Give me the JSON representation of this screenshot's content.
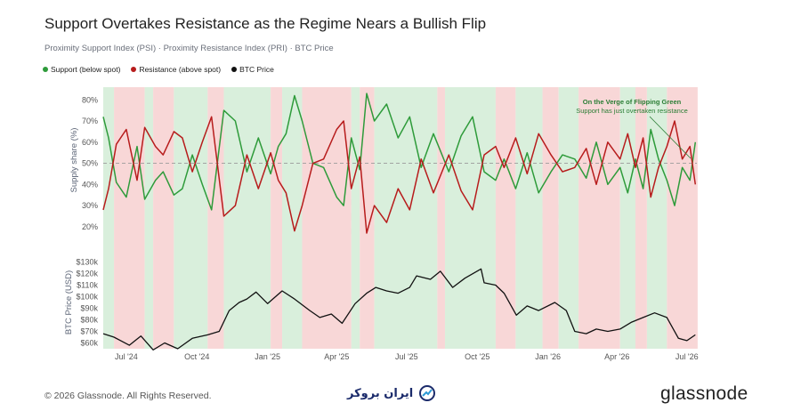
{
  "title": "Support Overtakes Resistance as the Regime Nears a Bullish Flip",
  "subtitle": "Proximity Support Index (PSI) · Proximity Resistance Index (PRI) · BTC Price",
  "legend": [
    {
      "label": "Support (below spot)",
      "color": "#2e9b3a"
    },
    {
      "label": "Resistance (above spot)",
      "color": "#b71c1c"
    },
    {
      "label": "BTC Price",
      "color": "#111111"
    }
  ],
  "watermark": "glassnode",
  "footer": {
    "copyright": "© 2026 Glassnode. All Rights Reserved.",
    "partner": "ایران بروکر",
    "brand": "glassnode"
  },
  "chart_data": [
    {
      "type": "line",
      "ylabel": "Supply share (%)",
      "yticks": [
        "20%",
        "30%",
        "40%",
        "50%",
        "60%",
        "70%",
        "80%"
      ],
      "ylim": [
        17,
        86
      ],
      "reference_line": 50,
      "xticks": [
        "Jul '24",
        "Oct '24",
        "Jan '25",
        "Apr '25",
        "Jul '25",
        "Oct '25",
        "Jan '26",
        "Apr '26",
        "Jul '26"
      ],
      "regime_colors": {
        "green": "#d9efdc",
        "red": "#f8d7d7"
      },
      "regimes": [
        {
          "from": "2024-06-01",
          "to": "2024-06-15",
          "regime": "green"
        },
        {
          "from": "2024-06-15",
          "to": "2024-07-25",
          "regime": "red"
        },
        {
          "from": "2024-07-25",
          "to": "2024-08-05",
          "regime": "green"
        },
        {
          "from": "2024-08-05",
          "to": "2024-09-01",
          "regime": "red"
        },
        {
          "from": "2024-09-01",
          "to": "2024-10-15",
          "regime": "green"
        },
        {
          "from": "2024-10-15",
          "to": "2024-11-05",
          "regime": "red"
        },
        {
          "from": "2024-11-05",
          "to": "2025-01-05",
          "regime": "green"
        },
        {
          "from": "2025-01-05",
          "to": "2025-01-20",
          "regime": "red"
        },
        {
          "from": "2025-01-20",
          "to": "2025-02-15",
          "regime": "green"
        },
        {
          "from": "2025-02-15",
          "to": "2025-04-20",
          "regime": "red"
        },
        {
          "from": "2025-04-20",
          "to": "2025-05-01",
          "regime": "green"
        },
        {
          "from": "2025-05-01",
          "to": "2025-05-20",
          "regime": "red"
        },
        {
          "from": "2025-05-20",
          "to": "2025-08-10",
          "regime": "green"
        },
        {
          "from": "2025-08-10",
          "to": "2025-08-20",
          "regime": "red"
        },
        {
          "from": "2025-08-20",
          "to": "2025-10-25",
          "regime": "green"
        },
        {
          "from": "2025-10-25",
          "to": "2025-11-20",
          "regime": "red"
        },
        {
          "from": "2025-11-20",
          "to": "2025-12-25",
          "regime": "green"
        },
        {
          "from": "2025-12-25",
          "to": "2026-01-15",
          "regime": "red"
        },
        {
          "from": "2026-01-15",
          "to": "2026-02-10",
          "regime": "green"
        },
        {
          "from": "2026-02-10",
          "to": "2026-04-05",
          "regime": "red"
        },
        {
          "from": "2026-04-05",
          "to": "2026-04-25",
          "regime": "green"
        },
        {
          "from": "2026-04-25",
          "to": "2026-05-10",
          "regime": "red"
        },
        {
          "from": "2026-05-10",
          "to": "2026-06-05",
          "regime": "green"
        },
        {
          "from": "2026-06-05",
          "to": "2026-07-15",
          "regime": "red"
        }
      ],
      "series": [
        {
          "name": "Support (below spot)",
          "color": "#2e9b3a",
          "x": [
            "2024-06-01",
            "2024-06-08",
            "2024-06-18",
            "2024-07-01",
            "2024-07-15",
            "2024-07-25",
            "2024-08-08",
            "2024-08-18",
            "2024-09-01",
            "2024-09-12",
            "2024-09-25",
            "2024-10-08",
            "2024-10-20",
            "2024-11-05",
            "2024-11-20",
            "2024-12-05",
            "2024-12-20",
            "2025-01-05",
            "2025-01-15",
            "2025-01-25",
            "2025-02-05",
            "2025-02-15",
            "2025-03-01",
            "2025-03-15",
            "2025-04-01",
            "2025-04-10",
            "2025-04-20",
            "2025-05-01",
            "2025-05-10",
            "2025-05-20",
            "2025-06-05",
            "2025-06-20",
            "2025-07-05",
            "2025-07-20",
            "2025-08-05",
            "2025-08-15",
            "2025-08-25",
            "2025-09-10",
            "2025-09-25",
            "2025-10-10",
            "2025-10-25",
            "2025-11-05",
            "2025-11-20",
            "2025-12-05",
            "2025-12-20",
            "2026-01-05",
            "2026-01-20",
            "2026-02-05",
            "2026-02-20",
            "2026-03-05",
            "2026-03-20",
            "2026-04-05",
            "2026-04-15",
            "2026-04-25",
            "2026-05-05",
            "2026-05-15",
            "2026-05-25",
            "2026-06-05",
            "2026-06-15",
            "2026-06-25",
            "2026-07-05",
            "2026-07-12"
          ],
          "y": [
            72,
            62,
            41,
            34,
            58,
            33,
            42,
            46,
            35,
            38,
            54,
            40,
            28,
            75,
            70,
            46,
            62,
            45,
            58,
            64,
            82,
            70,
            50,
            48,
            34,
            30,
            62,
            47,
            83,
            70,
            78,
            62,
            72,
            48,
            64,
            55,
            46,
            63,
            72,
            46,
            42,
            52,
            38,
            55,
            36,
            46,
            54,
            52,
            43,
            60,
            40,
            48,
            36,
            52,
            38,
            66,
            52,
            42,
            30,
            48,
            42,
            60
          ]
        },
        {
          "name": "Resistance (above spot)",
          "color": "#b71c1c",
          "x": [
            "2024-06-01",
            "2024-06-08",
            "2024-06-18",
            "2024-07-01",
            "2024-07-15",
            "2024-07-25",
            "2024-08-08",
            "2024-08-18",
            "2024-09-01",
            "2024-09-12",
            "2024-09-25",
            "2024-10-08",
            "2024-10-20",
            "2024-11-05",
            "2024-11-20",
            "2024-12-05",
            "2024-12-20",
            "2025-01-05",
            "2025-01-15",
            "2025-01-25",
            "2025-02-05",
            "2025-02-15",
            "2025-03-01",
            "2025-03-15",
            "2025-04-01",
            "2025-04-10",
            "2025-04-20",
            "2025-05-01",
            "2025-05-10",
            "2025-05-20",
            "2025-06-05",
            "2025-06-20",
            "2025-07-05",
            "2025-07-20",
            "2025-08-05",
            "2025-08-15",
            "2025-08-25",
            "2025-09-10",
            "2025-09-25",
            "2025-10-10",
            "2025-10-25",
            "2025-11-05",
            "2025-11-20",
            "2025-12-05",
            "2025-12-20",
            "2026-01-05",
            "2026-01-20",
            "2026-02-05",
            "2026-02-20",
            "2026-03-05",
            "2026-03-20",
            "2026-04-05",
            "2026-04-15",
            "2026-04-25",
            "2026-05-05",
            "2026-05-15",
            "2026-05-25",
            "2026-06-05",
            "2026-06-15",
            "2026-06-25",
            "2026-07-05",
            "2026-07-12"
          ],
          "y": [
            28,
            38,
            59,
            66,
            42,
            67,
            58,
            54,
            65,
            62,
            46,
            60,
            72,
            25,
            30,
            54,
            38,
            55,
            42,
            36,
            18,
            30,
            50,
            52,
            66,
            70,
            38,
            53,
            17,
            30,
            22,
            38,
            28,
            52,
            36,
            45,
            54,
            37,
            28,
            54,
            58,
            48,
            62,
            45,
            64,
            54,
            46,
            48,
            57,
            40,
            60,
            52,
            64,
            48,
            62,
            34,
            48,
            58,
            70,
            52,
            58,
            40
          ]
        }
      ]
    },
    {
      "type": "line",
      "ylabel": "BTC Price (USD)",
      "yticks": [
        "$60k",
        "$70k",
        "$80k",
        "$90k",
        "$100k",
        "$110k",
        "$120k",
        "$130k"
      ],
      "ylim": [
        55,
        135
      ],
      "annotation": {
        "title": "On the Verge of Flipping Green",
        "text": "Support has just overtaken resistance"
      },
      "series": [
        {
          "name": "BTC Price",
          "color": "#111111",
          "x": [
            "2024-06-01",
            "2024-06-15",
            "2024-07-05",
            "2024-07-20",
            "2024-08-05",
            "2024-08-20",
            "2024-09-06",
            "2024-09-25",
            "2024-10-15",
            "2024-10-30",
            "2024-11-12",
            "2024-11-25",
            "2024-12-05",
            "2024-12-17",
            "2025-01-01",
            "2025-01-20",
            "2025-02-05",
            "2025-02-25",
            "2025-03-10",
            "2025-03-25",
            "2025-04-08",
            "2025-04-25",
            "2025-05-10",
            "2025-05-22",
            "2025-06-05",
            "2025-06-20",
            "2025-07-05",
            "2025-07-14",
            "2025-08-01",
            "2025-08-14",
            "2025-08-30",
            "2025-09-15",
            "2025-10-06",
            "2025-10-10",
            "2025-10-25",
            "2025-11-05",
            "2025-11-21",
            "2025-12-05",
            "2025-12-20",
            "2026-01-10",
            "2026-01-25",
            "2026-02-05",
            "2026-02-20",
            "2026-03-05",
            "2026-03-20",
            "2026-04-05",
            "2026-04-20",
            "2026-05-05",
            "2026-05-20",
            "2026-06-05",
            "2026-06-20",
            "2026-07-01",
            "2026-07-12"
          ],
          "y": [
            68,
            65,
            58,
            66,
            54,
            60,
            55,
            64,
            67,
            70,
            88,
            95,
            98,
            104,
            94,
            105,
            98,
            88,
            82,
            85,
            77,
            94,
            103,
            108,
            105,
            103,
            108,
            118,
            115,
            122,
            108,
            116,
            124,
            112,
            110,
            103,
            84,
            92,
            88,
            95,
            88,
            70,
            68,
            72,
            70,
            72,
            78,
            82,
            86,
            82,
            64,
            62,
            67
          ]
        }
      ]
    }
  ]
}
